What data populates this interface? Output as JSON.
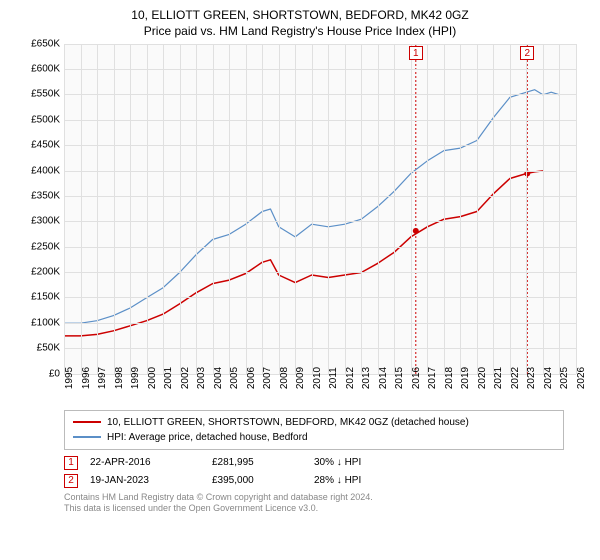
{
  "title": "10, ELLIOTT GREEN, SHORTSTOWN, BEDFORD, MK42 0GZ",
  "subtitle": "Price paid vs. HM Land Registry's House Price Index (HPI)",
  "chart": {
    "type": "line",
    "background_color": "#fafafa",
    "grid_color": "#e0e0e0",
    "xlim": [
      1995,
      2026
    ],
    "ylim": [
      0,
      650000
    ],
    "ytick_step": 50000,
    "yticks": [
      "£0",
      "£50K",
      "£100K",
      "£150K",
      "£200K",
      "£250K",
      "£300K",
      "£350K",
      "£400K",
      "£450K",
      "£500K",
      "£550K",
      "£600K",
      "£650K"
    ],
    "xticks": [
      "1995",
      "1996",
      "1997",
      "1998",
      "1999",
      "2000",
      "2001",
      "2002",
      "2003",
      "2004",
      "2005",
      "2006",
      "2007",
      "2008",
      "2009",
      "2010",
      "2011",
      "2012",
      "2013",
      "2014",
      "2015",
      "2016",
      "2017",
      "2018",
      "2019",
      "2020",
      "2021",
      "2022",
      "2023",
      "2024",
      "2025",
      "2026"
    ],
    "label_fontsize": 10,
    "series": [
      {
        "name": "property",
        "color": "#cc0000",
        "line_width": 1.5,
        "points": [
          [
            1995,
            75000
          ],
          [
            1996,
            75000
          ],
          [
            1997,
            78000
          ],
          [
            1998,
            85000
          ],
          [
            1999,
            95000
          ],
          [
            2000,
            105000
          ],
          [
            2001,
            118000
          ],
          [
            2002,
            138000
          ],
          [
            2003,
            160000
          ],
          [
            2004,
            178000
          ],
          [
            2005,
            185000
          ],
          [
            2006,
            198000
          ],
          [
            2007,
            220000
          ],
          [
            2007.5,
            225000
          ],
          [
            2008,
            195000
          ],
          [
            2009,
            180000
          ],
          [
            2010,
            195000
          ],
          [
            2011,
            190000
          ],
          [
            2012,
            195000
          ],
          [
            2013,
            200000
          ],
          [
            2014,
            218000
          ],
          [
            2015,
            240000
          ],
          [
            2016,
            270000
          ],
          [
            2017,
            290000
          ],
          [
            2018,
            305000
          ],
          [
            2019,
            310000
          ],
          [
            2020,
            320000
          ],
          [
            2021,
            355000
          ],
          [
            2022,
            385000
          ],
          [
            2023,
            395000
          ],
          [
            2023.5,
            398000
          ],
          [
            2024,
            400000
          ]
        ]
      },
      {
        "name": "hpi",
        "color": "#5b8fc7",
        "line_width": 1.2,
        "points": [
          [
            1995,
            100000
          ],
          [
            1996,
            100000
          ],
          [
            1997,
            105000
          ],
          [
            1998,
            115000
          ],
          [
            1999,
            130000
          ],
          [
            2000,
            150000
          ],
          [
            2001,
            170000
          ],
          [
            2002,
            200000
          ],
          [
            2003,
            235000
          ],
          [
            2004,
            265000
          ],
          [
            2005,
            275000
          ],
          [
            2006,
            295000
          ],
          [
            2007,
            320000
          ],
          [
            2007.5,
            325000
          ],
          [
            2008,
            290000
          ],
          [
            2009,
            270000
          ],
          [
            2010,
            295000
          ],
          [
            2011,
            290000
          ],
          [
            2012,
            295000
          ],
          [
            2013,
            305000
          ],
          [
            2014,
            330000
          ],
          [
            2015,
            360000
          ],
          [
            2016,
            395000
          ],
          [
            2017,
            420000
          ],
          [
            2018,
            440000
          ],
          [
            2019,
            445000
          ],
          [
            2020,
            460000
          ],
          [
            2021,
            505000
          ],
          [
            2022,
            545000
          ],
          [
            2023,
            555000
          ],
          [
            2023.5,
            560000
          ],
          [
            2024,
            550000
          ],
          [
            2024.5,
            555000
          ],
          [
            2025,
            550000
          ]
        ]
      }
    ],
    "markers": [
      {
        "label": "1",
        "x": 2016.3,
        "dot_y": 281995
      },
      {
        "label": "2",
        "x": 2023.05,
        "dot_y": 395000
      }
    ],
    "marker_line_color": "#cc0000",
    "marker_dash": "2,2",
    "dot_color": "#cc0000",
    "dot_radius": 3
  },
  "legend": {
    "items": [
      {
        "color": "#cc0000",
        "label": "10, ELLIOTT GREEN, SHORTSTOWN, BEDFORD, MK42 0GZ (detached house)"
      },
      {
        "color": "#5b8fc7",
        "label": "HPI: Average price, detached house, Bedford"
      }
    ]
  },
  "transactions": [
    {
      "num": "1",
      "date": "22-APR-2016",
      "price": "£281,995",
      "diff": "30% ↓ HPI"
    },
    {
      "num": "2",
      "date": "19-JAN-2023",
      "price": "£395,000",
      "diff": "28% ↓ HPI"
    }
  ],
  "footnote": {
    "line1": "Contains HM Land Registry data © Crown copyright and database right 2024.",
    "line2": "This data is licensed under the Open Government Licence v3.0."
  }
}
